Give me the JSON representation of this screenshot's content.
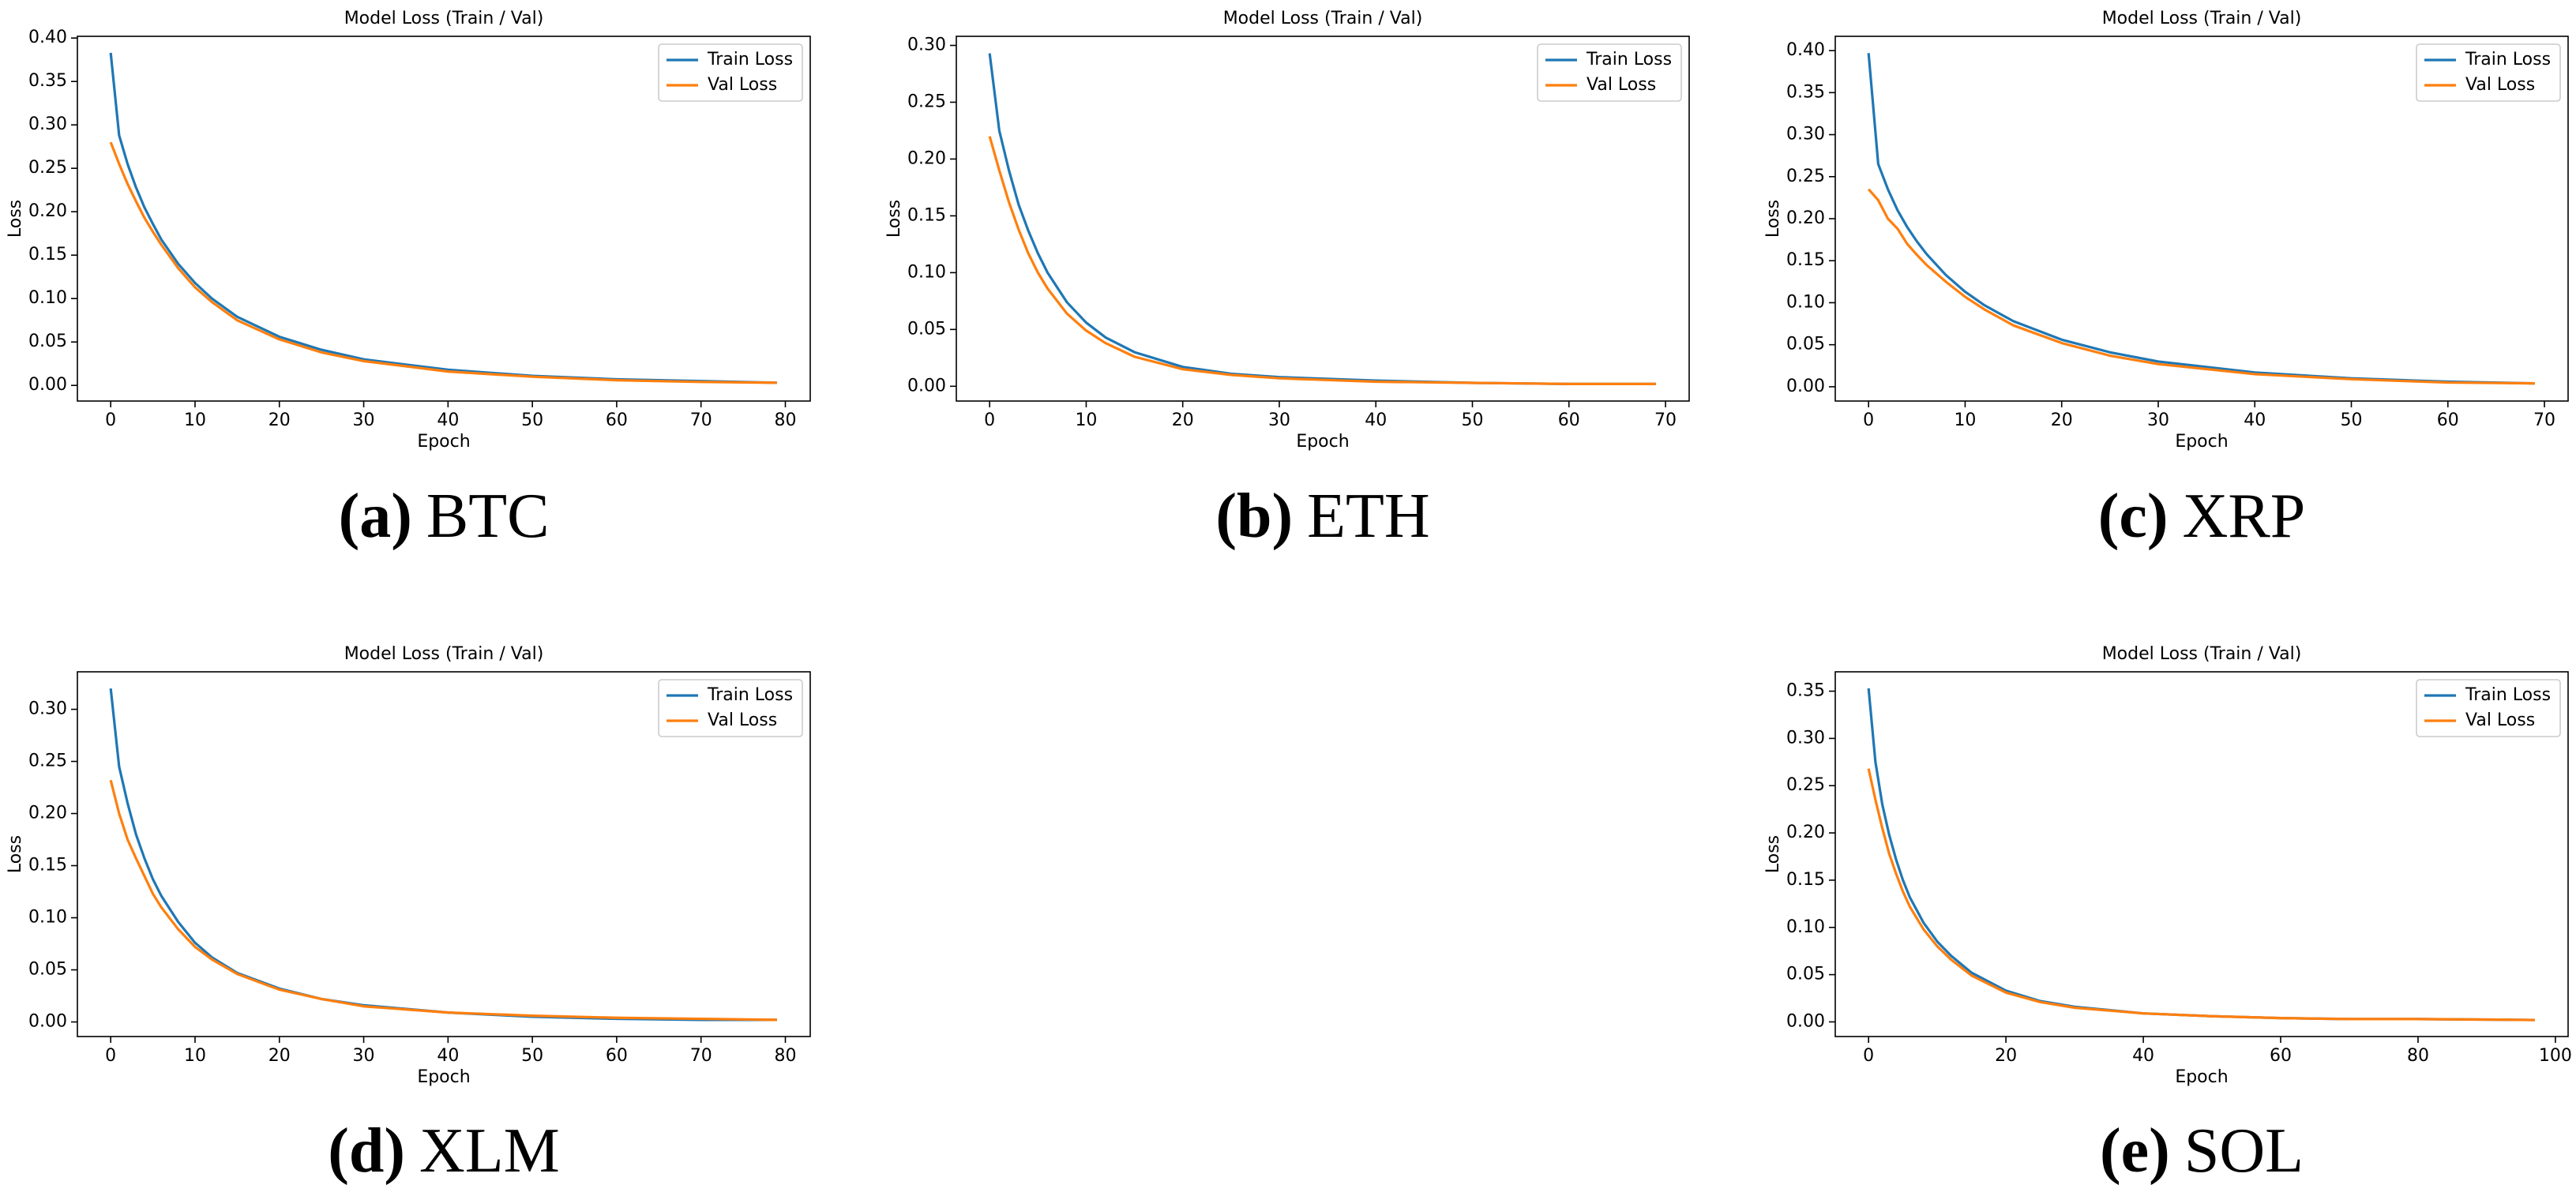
{
  "chart_data": [
    {
      "type": "line",
      "title": "Model Loss (Train / Val)",
      "xlabel": "Epoch",
      "ylabel": "Loss",
      "caption_label": "(a)",
      "caption": "BTC",
      "legend": "upper right",
      "x": [
        0,
        1,
        2,
        3,
        4,
        5,
        6,
        8,
        10,
        12,
        15,
        20,
        25,
        30,
        40,
        50,
        60,
        70,
        79
      ],
      "series": [
        {
          "name": "Train Loss",
          "color": "#1f77b4",
          "values": [
            0.383,
            0.288,
            0.255,
            0.228,
            0.205,
            0.186,
            0.168,
            0.14,
            0.118,
            0.1,
            0.079,
            0.056,
            0.041,
            0.03,
            0.018,
            0.011,
            0.007,
            0.005,
            0.003
          ]
        },
        {
          "name": "Val Loss",
          "color": "#ff7f0e",
          "values": [
            0.28,
            0.255,
            0.232,
            0.212,
            0.193,
            0.177,
            0.162,
            0.135,
            0.113,
            0.096,
            0.075,
            0.053,
            0.038,
            0.028,
            0.016,
            0.01,
            0.006,
            0.004,
            0.003
          ]
        }
      ],
      "xlim": [
        -3.95,
        82.95
      ],
      "xticks": [
        0,
        10,
        20,
        30,
        40,
        50,
        60,
        70,
        80
      ],
      "ylim": [
        -0.018,
        0.402
      ],
      "yticks": [
        {
          "value": 0,
          "label": "0.00"
        },
        {
          "value": 0.05,
          "label": "0.05"
        },
        {
          "value": 0.1,
          "label": "0.10"
        },
        {
          "value": 0.15,
          "label": "0.15"
        },
        {
          "value": 0.2,
          "label": "0.20"
        },
        {
          "value": 0.25,
          "label": "0.25"
        },
        {
          "value": 0.3,
          "label": "0.30"
        },
        {
          "value": 0.35,
          "label": "0.35"
        },
        {
          "value": 0.4,
          "label": "0.40"
        }
      ]
    },
    {
      "type": "line",
      "title": "Model Loss (Train / Val)",
      "xlabel": "Epoch",
      "ylabel": "Loss",
      "caption_label": "(b)",
      "caption": "ETH",
      "legend": "upper right",
      "x": [
        0,
        1,
        2,
        3,
        4,
        5,
        6,
        8,
        10,
        12,
        15,
        20,
        25,
        30,
        40,
        50,
        60,
        69
      ],
      "series": [
        {
          "name": "Train Loss",
          "color": "#1f77b4",
          "values": [
            0.293,
            0.225,
            0.19,
            0.16,
            0.137,
            0.117,
            0.1,
            0.074,
            0.056,
            0.043,
            0.03,
            0.017,
            0.011,
            0.008,
            0.005,
            0.003,
            0.002,
            0.002
          ]
        },
        {
          "name": "Val Loss",
          "color": "#ff7f0e",
          "values": [
            0.22,
            0.19,
            0.162,
            0.138,
            0.117,
            0.1,
            0.086,
            0.064,
            0.049,
            0.038,
            0.026,
            0.015,
            0.01,
            0.007,
            0.004,
            0.003,
            0.002,
            0.002
          ]
        }
      ],
      "xlim": [
        -3.45,
        72.45
      ],
      "xticks": [
        0,
        10,
        20,
        30,
        40,
        50,
        60,
        70
      ],
      "ylim": [
        -0.013,
        0.308
      ],
      "yticks": [
        {
          "value": 0,
          "label": "0.00"
        },
        {
          "value": 0.05,
          "label": "0.05"
        },
        {
          "value": 0.1,
          "label": "0.10"
        },
        {
          "value": 0.15,
          "label": "0.15"
        },
        {
          "value": 0.2,
          "label": "0.20"
        },
        {
          "value": 0.25,
          "label": "0.25"
        },
        {
          "value": 0.3,
          "label": "0.30"
        }
      ]
    },
    {
      "type": "line",
      "title": "Model Loss (Train / Val)",
      "xlabel": "Epoch",
      "ylabel": "Loss",
      "caption_label": "(c)",
      "caption": "XRP",
      "legend": "upper right",
      "x": [
        0,
        1,
        2,
        3,
        4,
        5,
        6,
        8,
        10,
        12,
        15,
        20,
        25,
        30,
        40,
        50,
        60,
        69
      ],
      "series": [
        {
          "name": "Train Loss",
          "color": "#1f77b4",
          "values": [
            0.397,
            0.265,
            0.235,
            0.21,
            0.19,
            0.173,
            0.158,
            0.133,
            0.113,
            0.097,
            0.078,
            0.056,
            0.041,
            0.03,
            0.017,
            0.01,
            0.006,
            0.004
          ]
        },
        {
          "name": "Val Loss",
          "color": "#ff7f0e",
          "values": [
            0.235,
            0.222,
            0.2,
            0.188,
            0.17,
            0.157,
            0.145,
            0.125,
            0.107,
            0.092,
            0.073,
            0.052,
            0.037,
            0.027,
            0.015,
            0.009,
            0.005,
            0.004
          ]
        }
      ],
      "xlim": [
        -3.45,
        72.45
      ],
      "xticks": [
        0,
        10,
        20,
        30,
        40,
        50,
        60,
        70
      ],
      "ylim": [
        -0.017,
        0.417
      ],
      "yticks": [
        {
          "value": 0,
          "label": "0.00"
        },
        {
          "value": 0.05,
          "label": "0.05"
        },
        {
          "value": 0.1,
          "label": "0.10"
        },
        {
          "value": 0.15,
          "label": "0.15"
        },
        {
          "value": 0.2,
          "label": "0.20"
        },
        {
          "value": 0.25,
          "label": "0.25"
        },
        {
          "value": 0.3,
          "label": "0.30"
        },
        {
          "value": 0.35,
          "label": "0.35"
        },
        {
          "value": 0.4,
          "label": "0.40"
        }
      ]
    },
    {
      "type": "line",
      "title": "Model Loss (Train / Val)",
      "xlabel": "Epoch",
      "ylabel": "Loss",
      "caption_label": "(d)",
      "caption": "XLM",
      "legend": "upper right",
      "x": [
        0,
        1,
        2,
        3,
        4,
        5,
        6,
        8,
        10,
        12,
        15,
        20,
        25,
        30,
        40,
        50,
        60,
        70,
        79
      ],
      "series": [
        {
          "name": "Train Loss",
          "color": "#1f77b4",
          "values": [
            0.32,
            0.245,
            0.21,
            0.18,
            0.157,
            0.137,
            0.121,
            0.096,
            0.076,
            0.062,
            0.047,
            0.032,
            0.022,
            0.016,
            0.009,
            0.005,
            0.003,
            0.002,
            0.002
          ]
        },
        {
          "name": "Val Loss",
          "color": "#ff7f0e",
          "values": [
            0.232,
            0.2,
            0.175,
            0.157,
            0.14,
            0.123,
            0.11,
            0.089,
            0.072,
            0.06,
            0.046,
            0.031,
            0.022,
            0.015,
            0.009,
            0.006,
            0.004,
            0.003,
            0.002
          ]
        }
      ],
      "xlim": [
        -3.95,
        82.95
      ],
      "xticks": [
        0,
        10,
        20,
        30,
        40,
        50,
        60,
        70,
        80
      ],
      "ylim": [
        -0.014,
        0.336
      ],
      "yticks": [
        {
          "value": 0,
          "label": "0.00"
        },
        {
          "value": 0.05,
          "label": "0.05"
        },
        {
          "value": 0.1,
          "label": "0.10"
        },
        {
          "value": 0.15,
          "label": "0.15"
        },
        {
          "value": 0.2,
          "label": "0.20"
        },
        {
          "value": 0.25,
          "label": "0.25"
        },
        {
          "value": 0.3,
          "label": "0.30"
        }
      ]
    },
    {
      "type": "line",
      "title": "Model Loss (Train / Val)",
      "xlabel": "Epoch",
      "ylabel": "Loss",
      "caption_label": "(e)",
      "caption": "SOL",
      "legend": "upper right",
      "x": [
        0,
        1,
        2,
        3,
        4,
        5,
        6,
        8,
        10,
        12,
        15,
        20,
        25,
        30,
        40,
        50,
        60,
        70,
        80,
        97
      ],
      "series": [
        {
          "name": "Train Loss",
          "color": "#1f77b4",
          "values": [
            0.353,
            0.275,
            0.23,
            0.198,
            0.172,
            0.15,
            0.132,
            0.105,
            0.085,
            0.07,
            0.052,
            0.033,
            0.022,
            0.016,
            0.009,
            0.006,
            0.004,
            0.003,
            0.003,
            0.002
          ]
        },
        {
          "name": "Val Loss",
          "color": "#ff7f0e",
          "values": [
            0.268,
            0.235,
            0.205,
            0.178,
            0.157,
            0.138,
            0.122,
            0.098,
            0.08,
            0.066,
            0.049,
            0.031,
            0.021,
            0.015,
            0.009,
            0.006,
            0.004,
            0.003,
            0.003,
            0.002
          ]
        }
      ],
      "xlim": [
        -4.85,
        101.85
      ],
      "xticks": [
        0,
        20,
        40,
        60,
        80,
        100
      ],
      "ylim": [
        -0.0155,
        0.3705
      ],
      "yticks": [
        {
          "value": 0,
          "label": "0.00"
        },
        {
          "value": 0.05,
          "label": "0.05"
        },
        {
          "value": 0.1,
          "label": "0.10"
        },
        {
          "value": 0.15,
          "label": "0.15"
        },
        {
          "value": 0.2,
          "label": "0.20"
        },
        {
          "value": 0.25,
          "label": "0.25"
        },
        {
          "value": 0.3,
          "label": "0.30"
        },
        {
          "value": 0.35,
          "label": "0.35"
        }
      ]
    }
  ]
}
